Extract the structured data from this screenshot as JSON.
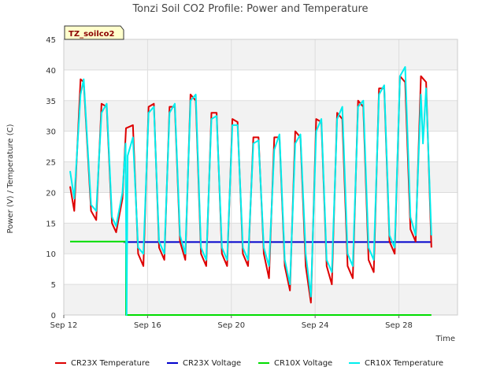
{
  "chart_data": {
    "type": "line",
    "title": "Tonzi Soil CO2 Profile: Power and Temperature",
    "site_label": "TZ_soilco2",
    "xlabel": "Time",
    "ylabel": "Power (V) / Temperature (C)",
    "ylim": [
      0,
      45
    ],
    "yticks": [
      0,
      5,
      10,
      15,
      20,
      25,
      30,
      35,
      40,
      45
    ],
    "xlim_days": [
      12,
      30.8
    ],
    "xticks": [
      {
        "day": 12,
        "label": "Sep 12"
      },
      {
        "day": 16,
        "label": "Sep 16"
      },
      {
        "day": 20,
        "label": "Sep 20"
      },
      {
        "day": 24,
        "label": "Sep 24"
      },
      {
        "day": 28,
        "label": "Sep 28"
      }
    ],
    "grid": true,
    "legend_position": "bottom",
    "series": [
      {
        "name": "CR23X Temperature",
        "color": "#dd0000",
        "x": [
          12.3,
          12.5,
          12.8,
          12.95,
          13.3,
          13.55,
          13.8,
          14.05,
          14.3,
          14.5,
          14.8,
          14.97,
          15.3,
          15.55,
          15.8,
          16.05,
          16.3,
          16.55,
          16.8,
          17.05,
          17.3,
          17.55,
          17.8,
          18.05,
          18.3,
          18.55,
          18.8,
          19.05,
          19.3,
          19.55,
          19.8,
          20.05,
          20.3,
          20.55,
          20.8,
          21.05,
          21.3,
          21.55,
          21.8,
          22.05,
          22.3,
          22.55,
          22.8,
          23.05,
          23.3,
          23.55,
          23.8,
          24.05,
          24.3,
          24.55,
          24.8,
          25.05,
          25.3,
          25.55,
          25.8,
          26.05,
          26.3,
          26.55,
          26.8,
          27.05,
          27.3,
          27.55,
          27.8,
          28.05,
          28.3,
          28.55,
          28.8,
          29.05,
          29.3,
          29.55
        ],
        "y": [
          21,
          17,
          38.5,
          38,
          17,
          15.5,
          34.5,
          34,
          15,
          13.5,
          19,
          30.5,
          31,
          10,
          8,
          34,
          34.5,
          11,
          9,
          34,
          34,
          12,
          9,
          36,
          35,
          10,
          8,
          33,
          33,
          10,
          8,
          32,
          31.5,
          10,
          8,
          29,
          29,
          10,
          6,
          29,
          29,
          8,
          4,
          30,
          29,
          8,
          2,
          32,
          31.5,
          8,
          5,
          33,
          32,
          8,
          6,
          35,
          34,
          9,
          7,
          37,
          37,
          12,
          10,
          39,
          38,
          14,
          12,
          39,
          38,
          11
        ]
      },
      {
        "name": "CR23X Voltage",
        "color": "#0000cc",
        "x": [
          14.85,
          29.55
        ],
        "y": [
          11.9,
          11.9
        ]
      },
      {
        "name": "CR10X Voltage",
        "color": "#00dd00",
        "x": [
          12.3,
          14.97,
          14.97,
          14.97,
          29.55
        ],
        "y": [
          12,
          12,
          12,
          0,
          0
        ]
      },
      {
        "name": "CR10X Temperature",
        "color": "#00eeee",
        "x": [
          12.3,
          12.5,
          12.8,
          12.95,
          13.3,
          13.55,
          13.8,
          14.05,
          14.3,
          14.5,
          14.8,
          14.95,
          15.0,
          15.05,
          15.3,
          15.55,
          15.8,
          16.05,
          16.3,
          16.55,
          16.8,
          17.05,
          17.3,
          17.55,
          17.8,
          18.05,
          18.3,
          18.55,
          18.8,
          19.05,
          19.3,
          19.55,
          19.8,
          20.05,
          20.3,
          20.55,
          20.8,
          21.05,
          21.3,
          21.55,
          21.8,
          22.05,
          22.3,
          22.55,
          22.8,
          23.05,
          23.3,
          23.55,
          23.8,
          24.05,
          24.3,
          24.55,
          24.8,
          25.05,
          25.3,
          25.55,
          25.8,
          26.05,
          26.3,
          26.55,
          26.8,
          27.05,
          27.3,
          27.55,
          27.8,
          28.05,
          28.3,
          28.55,
          28.8,
          29.05,
          29.15,
          29.3,
          29.55
        ],
        "y": [
          23.5,
          19,
          36,
          38.5,
          18,
          17,
          33,
          34.5,
          16,
          14.5,
          20,
          28,
          0,
          26,
          29,
          11,
          10,
          33,
          34,
          12,
          10,
          33,
          34.5,
          13,
          10,
          35,
          36,
          11,
          9,
          32,
          32.5,
          11,
          9,
          31,
          31,
          11,
          9,
          28,
          28.5,
          11,
          8,
          27,
          29.5,
          9,
          5,
          28,
          29.5,
          10,
          3,
          30,
          32,
          9,
          7,
          32,
          34,
          10,
          8,
          34,
          35,
          11,
          9,
          36,
          37.5,
          13,
          11,
          39,
          40.5,
          16,
          13,
          36,
          28,
          37,
          13
        ]
      }
    ]
  }
}
